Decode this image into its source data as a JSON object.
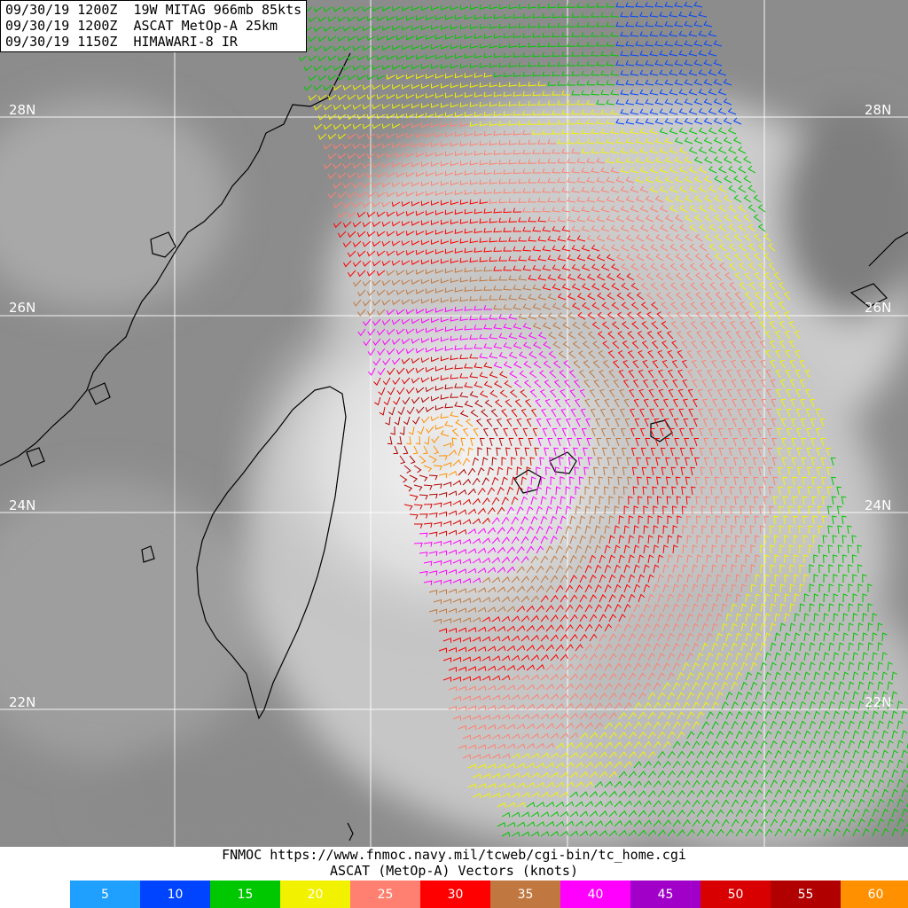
{
  "header": {
    "line1": "09/30/19 1200Z  19W MITAG 966mb 85kts",
    "line2": "09/30/19 1200Z  ASCAT MetOp-A 25km",
    "line3": "09/30/19 1150Z  HIMAWARI-8 IR"
  },
  "lat_labels": [
    {
      "label": "28N"
    },
    {
      "label": "26N"
    },
    {
      "label": "24N"
    },
    {
      "label": "22N"
    }
  ],
  "footer": {
    "source": "FNMOC https://www.fnmoc.navy.mil/tcweb/cgi-bin/tc_home.cgi",
    "subtitle": "ASCAT (MetOp-A) Vectors (knots)"
  },
  "legend": [
    {
      "label": "5",
      "color": "#1fa0ff"
    },
    {
      "label": "10",
      "color": "#0044ff"
    },
    {
      "label": "15",
      "color": "#00c800"
    },
    {
      "label": "20",
      "color": "#f2f200"
    },
    {
      "label": "25",
      "color": "#ff8070"
    },
    {
      "label": "30",
      "color": "#ff0000"
    },
    {
      "label": "35",
      "color": "#c07840"
    },
    {
      "label": "40",
      "color": "#ff00ff"
    },
    {
      "label": "45",
      "color": "#a000c8"
    },
    {
      "label": "50",
      "color": "#d80000"
    },
    {
      "label": "55",
      "color": "#b00000"
    },
    {
      "label": "60",
      "color": "#ff9000"
    }
  ],
  "storm": {
    "name": "MITAG",
    "pressure": "966mb",
    "wind": "85kts"
  },
  "colors": {
    "grid": "#ffffff",
    "coast": "#000000"
  }
}
